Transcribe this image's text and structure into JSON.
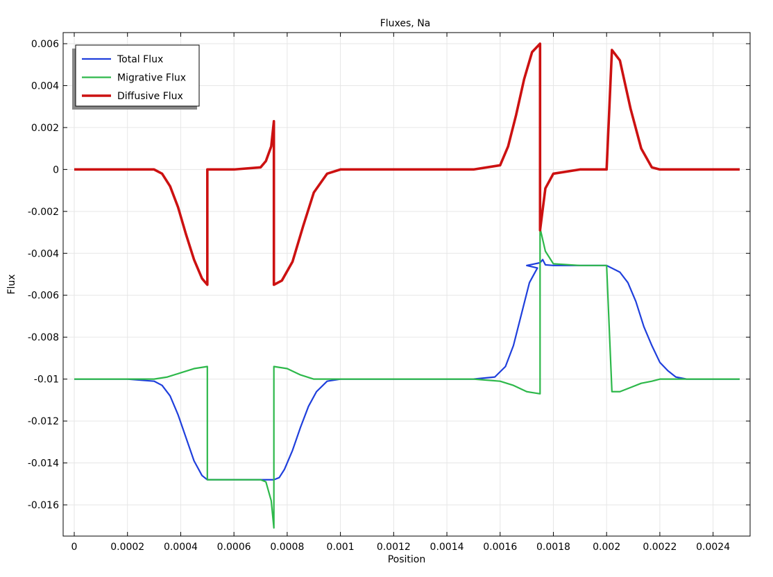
{
  "chart_data": {
    "type": "line",
    "title": "Fluxes, Na",
    "xlabel": "Position",
    "ylabel": "Flux",
    "xlim": [
      0,
      0.0025
    ],
    "ylim": [
      -0.0175,
      0.0062
    ],
    "grid": true,
    "legend_position": "top-left",
    "x_ticks": [
      {
        "value": 0,
        "label": "0"
      },
      {
        "value": 0.0002,
        "label": "0.0002"
      },
      {
        "value": 0.0004,
        "label": "0.0004"
      },
      {
        "value": 0.0006,
        "label": "0.0006"
      },
      {
        "value": 0.0008,
        "label": "0.0008"
      },
      {
        "value": 0.001,
        "label": "0.001"
      },
      {
        "value": 0.0012,
        "label": "0.0012"
      },
      {
        "value": 0.0014,
        "label": "0.0014"
      },
      {
        "value": 0.0016,
        "label": "0.0016"
      },
      {
        "value": 0.0018,
        "label": "0.0018"
      },
      {
        "value": 0.002,
        "label": "0.002"
      },
      {
        "value": 0.0022,
        "label": "0.0022"
      },
      {
        "value": 0.0024,
        "label": "0.0024"
      }
    ],
    "y_ticks": [
      {
        "value": 0.006,
        "label": "0.006"
      },
      {
        "value": 0.004,
        "label": "0.004"
      },
      {
        "value": 0.002,
        "label": "0.002"
      },
      {
        "value": 0,
        "label": "0"
      },
      {
        "value": -0.002,
        "label": "-0.002"
      },
      {
        "value": -0.004,
        "label": "-0.004"
      },
      {
        "value": -0.006,
        "label": "-0.006"
      },
      {
        "value": -0.008,
        "label": "-0.008"
      },
      {
        "value": -0.01,
        "label": "-0.01"
      },
      {
        "value": -0.012,
        "label": "-0.012"
      },
      {
        "value": -0.014,
        "label": "-0.014"
      },
      {
        "value": -0.016,
        "label": "-0.016"
      }
    ],
    "series": [
      {
        "name": "Total Flux",
        "color": "#1f3fdc",
        "points": [
          [
            0,
            -0.01
          ],
          [
            0.0002,
            -0.01
          ],
          [
            0.0003,
            -0.0101
          ],
          [
            0.00033,
            -0.0103
          ],
          [
            0.00036,
            -0.0108
          ],
          [
            0.00039,
            -0.0117
          ],
          [
            0.00042,
            -0.0128
          ],
          [
            0.00045,
            -0.0139
          ],
          [
            0.00048,
            -0.0146
          ],
          [
            0.0005,
            -0.0148
          ],
          [
            0.0006,
            -0.0148
          ],
          [
            0.0007,
            -0.0148
          ],
          [
            0.00075,
            -0.0148
          ],
          [
            0.00077,
            -0.0147
          ],
          [
            0.00079,
            -0.0143
          ],
          [
            0.00082,
            -0.0134
          ],
          [
            0.00085,
            -0.0123
          ],
          [
            0.00088,
            -0.0113
          ],
          [
            0.00091,
            -0.0106
          ],
          [
            0.00095,
            -0.0101
          ],
          [
            0.001,
            -0.01
          ],
          [
            0.0014,
            -0.01
          ],
          [
            0.0015,
            -0.01
          ],
          [
            0.00158,
            -0.0099
          ],
          [
            0.00162,
            -0.0094
          ],
          [
            0.00165,
            -0.0084
          ],
          [
            0.00168,
            -0.0069
          ],
          [
            0.00171,
            -0.0054
          ],
          [
            0.00174,
            -0.0047
          ],
          [
            0.0017,
            -0.00458
          ],
          [
            0.00175,
            -0.00445
          ],
          [
            0.00176,
            -0.0043
          ],
          [
            0.00177,
            -0.00455
          ],
          [
            0.0018,
            -0.00458
          ],
          [
            0.0019,
            -0.00458
          ],
          [
            0.002,
            -0.00458
          ],
          [
            0.00205,
            -0.0049
          ],
          [
            0.00208,
            -0.0054
          ],
          [
            0.00211,
            -0.0063
          ],
          [
            0.00214,
            -0.0075
          ],
          [
            0.00217,
            -0.0084
          ],
          [
            0.0022,
            -0.0092
          ],
          [
            0.00223,
            -0.0096
          ],
          [
            0.00226,
            -0.0099
          ],
          [
            0.0023,
            -0.01
          ],
          [
            0.0025,
            -0.01
          ]
        ]
      },
      {
        "name": "Migrative Flux",
        "color": "#2db84a",
        "points": [
          [
            0,
            -0.01
          ],
          [
            0.0003,
            -0.01
          ],
          [
            0.00035,
            -0.0099
          ],
          [
            0.0004,
            -0.0097
          ],
          [
            0.00045,
            -0.0095
          ],
          [
            0.0005,
            -0.0094
          ],
          [
            0.0005,
            -0.0148
          ],
          [
            0.0006,
            -0.0148
          ],
          [
            0.0007,
            -0.0148
          ],
          [
            0.00072,
            -0.0149
          ],
          [
            0.00074,
            -0.0158
          ],
          [
            0.00075,
            -0.0171
          ],
          [
            0.00075,
            -0.0094
          ],
          [
            0.0008,
            -0.0095
          ],
          [
            0.00085,
            -0.0098
          ],
          [
            0.0009,
            -0.01
          ],
          [
            0.001,
            -0.01
          ],
          [
            0.0015,
            -0.01
          ],
          [
            0.0016,
            -0.0101
          ],
          [
            0.00165,
            -0.0103
          ],
          [
            0.0017,
            -0.0106
          ],
          [
            0.00175,
            -0.0107
          ],
          [
            0.00175,
            -0.0028
          ],
          [
            0.00177,
            -0.0039
          ],
          [
            0.0018,
            -0.0045
          ],
          [
            0.0019,
            -0.00458
          ],
          [
            0.002,
            -0.00458
          ],
          [
            0.00202,
            -0.0106
          ],
          [
            0.00205,
            -0.0106
          ],
          [
            0.00209,
            -0.0104
          ],
          [
            0.00213,
            -0.0102
          ],
          [
            0.00217,
            -0.0101
          ],
          [
            0.0022,
            -0.01
          ],
          [
            0.0025,
            -0.01
          ]
        ]
      },
      {
        "name": "Diffusive Flux",
        "color": "#cc1111",
        "points": [
          [
            0,
            0
          ],
          [
            0.0003,
            0
          ],
          [
            0.00033,
            -0.0002
          ],
          [
            0.00036,
            -0.0008
          ],
          [
            0.00039,
            -0.0018
          ],
          [
            0.00042,
            -0.0031
          ],
          [
            0.00045,
            -0.0043
          ],
          [
            0.00048,
            -0.0052
          ],
          [
            0.0005,
            -0.0055
          ],
          [
            0.0005,
            0
          ],
          [
            0.0006,
            0
          ],
          [
            0.0007,
            0.0001
          ],
          [
            0.00072,
            0.0004
          ],
          [
            0.00074,
            0.0011
          ],
          [
            0.00075,
            0.0023
          ],
          [
            0.00075,
            -0.0055
          ],
          [
            0.00078,
            -0.0053
          ],
          [
            0.00082,
            -0.0044
          ],
          [
            0.00086,
            -0.0027
          ],
          [
            0.0009,
            -0.0011
          ],
          [
            0.00095,
            -0.0002
          ],
          [
            0.001,
            0
          ],
          [
            0.0015,
            0
          ],
          [
            0.0016,
            0.0002
          ],
          [
            0.00163,
            0.0011
          ],
          [
            0.00166,
            0.0026
          ],
          [
            0.00169,
            0.0043
          ],
          [
            0.00172,
            0.0056
          ],
          [
            0.00175,
            0.006
          ],
          [
            0.00175,
            -0.0029
          ],
          [
            0.00177,
            -0.0009
          ],
          [
            0.0018,
            -0.0002
          ],
          [
            0.0019,
            0
          ],
          [
            0.002,
            0
          ],
          [
            0.00202,
            0.0057
          ],
          [
            0.00205,
            0.0052
          ],
          [
            0.00209,
            0.0029
          ],
          [
            0.00213,
            0.001
          ],
          [
            0.00217,
            0.0001
          ],
          [
            0.0022,
            0
          ],
          [
            0.0025,
            0
          ]
        ]
      }
    ]
  }
}
